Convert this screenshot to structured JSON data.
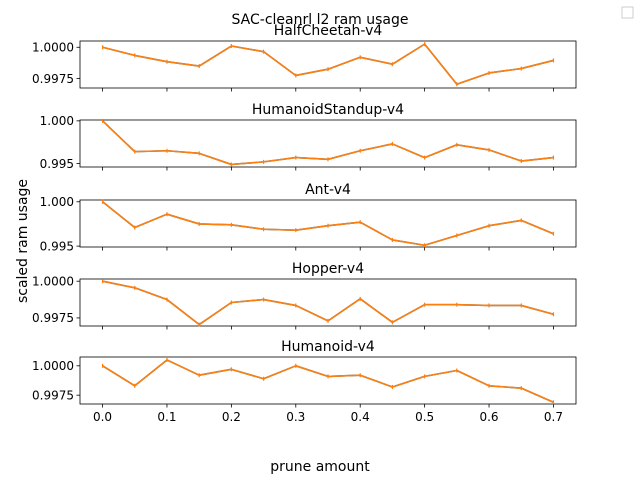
{
  "figure": {
    "title": "SAC-cleanrl l2 ram usage",
    "xlabel": "prune amount",
    "ylabel": "scaled ram usage",
    "line_color": "#ff7f0e",
    "blue_color": "#1f77b4"
  },
  "chart_data": [
    {
      "type": "line",
      "title": "HalfCheetah-v4",
      "x": [
        0.0,
        0.05,
        0.1,
        0.15,
        0.2,
        0.25,
        0.3,
        0.35,
        0.4,
        0.45,
        0.5,
        0.55,
        0.6,
        0.65,
        0.7
      ],
      "values": [
        1.0,
        0.99935,
        0.99885,
        0.9985,
        1.0001,
        0.99965,
        0.99775,
        0.99825,
        0.9992,
        0.99865,
        1.00025,
        0.99705,
        0.99795,
        0.9983,
        0.99895
      ],
      "ylim": [
        0.99675,
        1.0005
      ],
      "yticks": [
        1.0,
        0.9975
      ],
      "ytick_labels": [
        "1.0000",
        "0.9975"
      ]
    },
    {
      "type": "line",
      "title": "HumanoidStandup-v4",
      "x": [
        0.0,
        0.05,
        0.1,
        0.15,
        0.2,
        0.25,
        0.3,
        0.35,
        0.4,
        0.45,
        0.5,
        0.55,
        0.6,
        0.65,
        0.7
      ],
      "values": [
        1.0,
        0.9964,
        0.9965,
        0.9962,
        0.9949,
        0.9952,
        0.9957,
        0.9955,
        0.9965,
        0.9973,
        0.9957,
        0.9972,
        0.9966,
        0.9953,
        0.9957
      ],
      "ylim": [
        0.9946,
        1.0001
      ],
      "yticks": [
        1.0,
        0.995
      ],
      "ytick_labels": [
        "1.000",
        "0.995"
      ]
    },
    {
      "type": "line",
      "title": "Ant-v4",
      "x": [
        0.0,
        0.05,
        0.1,
        0.15,
        0.2,
        0.25,
        0.3,
        0.35,
        0.4,
        0.45,
        0.5,
        0.55,
        0.6,
        0.65,
        0.7
      ],
      "values": [
        1.0,
        0.9971,
        0.9986,
        0.9975,
        0.9974,
        0.9969,
        0.9968,
        0.9973,
        0.9977,
        0.9957,
        0.9951,
        0.9962,
        0.9973,
        0.9979,
        0.9964
      ],
      "ylim": [
        0.9949,
        1.0002
      ],
      "yticks": [
        1.0,
        0.995
      ],
      "ytick_labels": [
        "1.000",
        "0.995"
      ]
    },
    {
      "type": "line",
      "title": "Hopper-v4",
      "x": [
        0.0,
        0.05,
        0.1,
        0.15,
        0.2,
        0.25,
        0.3,
        0.35,
        0.4,
        0.45,
        0.5,
        0.55,
        0.6,
        0.65,
        0.7
      ],
      "values": [
        1.0,
        0.99955,
        0.99875,
        0.99705,
        0.99855,
        0.99875,
        0.99835,
        0.9973,
        0.9988,
        0.9972,
        0.9984,
        0.9984,
        0.99835,
        0.99835,
        0.99775
      ],
      "ylim": [
        0.99695,
        1.00015
      ],
      "yticks": [
        1.0,
        0.9975
      ],
      "ytick_labels": [
        "1.0000",
        "0.9975"
      ]
    },
    {
      "type": "line",
      "title": "Humanoid-v4",
      "x": [
        0.0,
        0.05,
        0.1,
        0.15,
        0.2,
        0.25,
        0.3,
        0.35,
        0.4,
        0.45,
        0.5,
        0.55,
        0.6,
        0.65,
        0.7
      ],
      "values": [
        1.0,
        0.9983,
        1.0005,
        0.9992,
        0.9997,
        0.9989,
        1.0,
        0.9991,
        0.9992,
        0.9982,
        0.9991,
        0.9996,
        0.9983,
        0.9981,
        0.9969
      ],
      "ylim": [
        0.99675,
        1.00075
      ],
      "yticks": [
        1.0,
        0.9975
      ],
      "ytick_labels": [
        "1.0000",
        "0.9975"
      ]
    }
  ],
  "xaxis": {
    "xlim": [
      -0.035,
      0.735
    ],
    "ticks": [
      0.0,
      0.1,
      0.2,
      0.3,
      0.4,
      0.5,
      0.6,
      0.7
    ],
    "tick_labels": [
      "0.0",
      "0.1",
      "0.2",
      "0.3",
      "0.4",
      "0.5",
      "0.6",
      "0.7"
    ]
  }
}
